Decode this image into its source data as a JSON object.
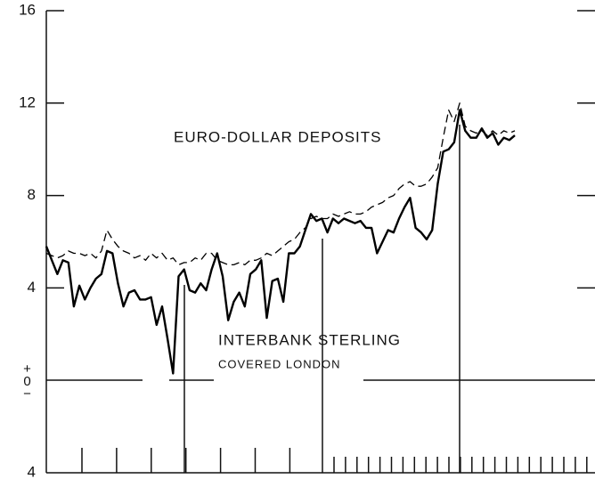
{
  "chart_data": {
    "type": "line",
    "annotations": [
      "EURO-DOLLAR DEPOSITS",
      "INTERBANK STERLING",
      "COVERED LONDON"
    ],
    "ylim": [
      -4,
      16
    ],
    "yticks": [
      {
        "value": -4,
        "label": "4"
      },
      {
        "value": 0,
        "label": "+0−"
      },
      4,
      8,
      12,
      16
    ],
    "series": [
      {
        "name": "INTERBANK STERLING",
        "color": "#000000",
        "style": "solid",
        "values": [
          5.8,
          5.2,
          4.6,
          5.2,
          5.1,
          3.2,
          4.1,
          3.5,
          4.0,
          4.4,
          4.6,
          5.6,
          5.5,
          4.2,
          3.2,
          3.8,
          3.9,
          3.5,
          3.5,
          3.6,
          2.4,
          3.2,
          1.8,
          0.3,
          4.5,
          4.8,
          3.9,
          3.8,
          4.2,
          3.9,
          4.8,
          5.5,
          4.5,
          2.6,
          3.4,
          3.8,
          3.2,
          4.6,
          4.8,
          5.2,
          2.7,
          4.3,
          4.4,
          3.4,
          5.5,
          5.5,
          5.8,
          6.5,
          7.2,
          6.9,
          7.0,
          6.4,
          7.0,
          6.8,
          7.0,
          6.9,
          6.8,
          6.9,
          6.6,
          6.6,
          5.5,
          6.0,
          6.5,
          6.4,
          7.0,
          7.5,
          7.9,
          6.6,
          6.4,
          6.1,
          6.5,
          8.5,
          9.9,
          10.0,
          10.3,
          11.7,
          10.8,
          10.5,
          10.5,
          10.9,
          10.5,
          10.7,
          10.2,
          10.5,
          10.4,
          10.6
        ]
      },
      {
        "name": "EURO-DOLLAR DEPOSITS",
        "color": "#000000",
        "style": "dashed",
        "values": [
          5.5,
          5.4,
          5.3,
          5.4,
          5.6,
          5.5,
          5.5,
          5.4,
          5.5,
          5.3,
          5.6,
          6.5,
          6.1,
          5.8,
          5.6,
          5.5,
          5.3,
          5.4,
          5.2,
          5.5,
          5.3,
          5.5,
          5.2,
          5.3,
          5.0,
          5.1,
          5.1,
          5.3,
          5.2,
          5.5,
          5.5,
          5.2,
          5.1,
          5.0,
          5.0,
          5.1,
          5.0,
          5.2,
          5.2,
          5.3,
          5.5,
          5.4,
          5.6,
          5.8,
          6.0,
          6.1,
          6.4,
          6.6,
          7.0,
          7.1,
          7.0,
          7.0,
          7.2,
          7.1,
          7.2,
          7.3,
          7.2,
          7.2,
          7.3,
          7.5,
          7.6,
          7.7,
          7.9,
          8.0,
          8.3,
          8.5,
          8.6,
          8.4,
          8.4,
          8.5,
          8.8,
          9.2,
          10.5,
          11.7,
          11.2,
          12.0,
          11.0,
          10.8,
          10.7,
          10.8,
          10.6,
          10.8,
          10.6,
          10.8,
          10.7,
          10.8
        ]
      }
    ]
  }
}
